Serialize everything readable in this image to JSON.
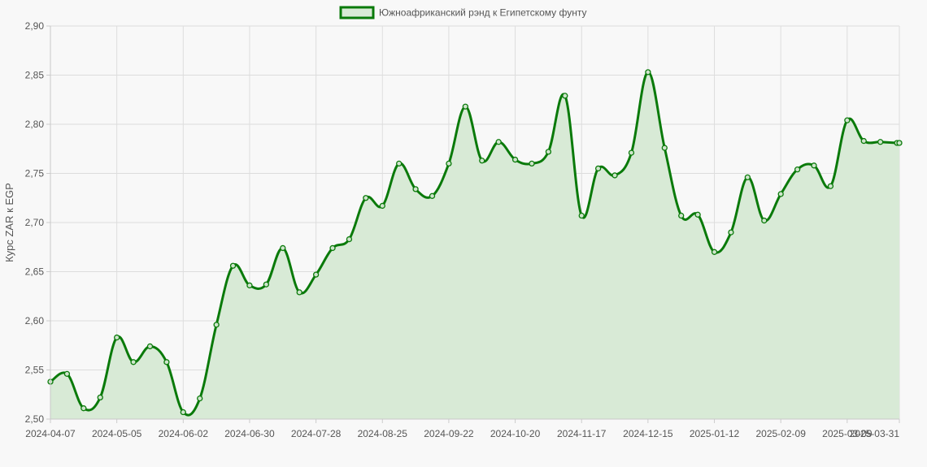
{
  "chart_data": {
    "type": "area",
    "title": "",
    "ylabel": "Курс ZAR к EGP",
    "xlabel": "",
    "ylim": [
      2.5,
      2.9
    ],
    "yticks": [
      "2,90",
      "2,85",
      "2,80",
      "2,75",
      "2,70",
      "2,65",
      "2,60",
      "2,55",
      "2,50"
    ],
    "xtick_labels": [
      "2024-04-07",
      "2024-05-05",
      "2024-06-02",
      "2024-06-30",
      "2024-07-28",
      "2024-08-25",
      "2024-09-22",
      "2024-10-20",
      "2024-11-17",
      "2024-12-15",
      "2025-01-12",
      "2025-02-09",
      "2025-03-09",
      "2025-03-31"
    ],
    "grid": true,
    "legend_position": "top",
    "colors": {
      "line": "#0a7a0a",
      "fill": "#d8ead6",
      "grid": "#dddddd",
      "text": "#555555"
    },
    "series": [
      {
        "name": "Южноафриканский рэнд к Египетскому фунту",
        "x": [
          "2024-04-07",
          "2024-04-14",
          "2024-04-21",
          "2024-04-28",
          "2024-05-05",
          "2024-05-12",
          "2024-05-19",
          "2024-05-26",
          "2024-06-02",
          "2024-06-09",
          "2024-06-16",
          "2024-06-23",
          "2024-06-30",
          "2024-07-07",
          "2024-07-14",
          "2024-07-21",
          "2024-07-28",
          "2024-08-04",
          "2024-08-11",
          "2024-08-18",
          "2024-08-25",
          "2024-09-01",
          "2024-09-08",
          "2024-09-15",
          "2024-09-22",
          "2024-09-29",
          "2024-10-06",
          "2024-10-13",
          "2024-10-20",
          "2024-10-27",
          "2024-11-03",
          "2024-11-10",
          "2024-11-17",
          "2024-11-24",
          "2024-12-01",
          "2024-12-08",
          "2024-12-15",
          "2024-12-22",
          "2024-12-29",
          "2025-01-05",
          "2025-01-12",
          "2025-01-19",
          "2025-01-26",
          "2025-02-02",
          "2025-02-09",
          "2025-02-16",
          "2025-02-23",
          "2025-03-02",
          "2025-03-09",
          "2025-03-16",
          "2025-03-23",
          "2025-03-30",
          "2025-03-31"
        ],
        "values": [
          2.538,
          2.546,
          2.511,
          2.522,
          2.583,
          2.558,
          2.574,
          2.558,
          2.507,
          2.521,
          2.596,
          2.656,
          2.636,
          2.637,
          2.674,
          2.629,
          2.647,
          2.674,
          2.683,
          2.725,
          2.717,
          2.76,
          2.734,
          2.727,
          2.76,
          2.818,
          2.763,
          2.782,
          2.764,
          2.76,
          2.772,
          2.829,
          2.707,
          2.755,
          2.748,
          2.771,
          2.853,
          2.776,
          2.707,
          2.708,
          2.67,
          2.69,
          2.746,
          2.702,
          2.729,
          2.754,
          2.758,
          2.737,
          2.804,
          2.783,
          2.782,
          2.781,
          2.781
        ]
      }
    ]
  }
}
